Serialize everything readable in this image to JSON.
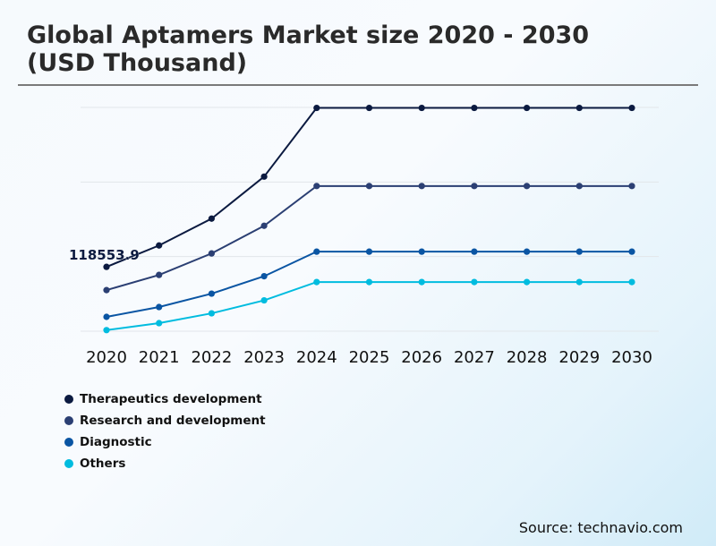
{
  "chart_data": {
    "type": "line",
    "title": "Global Aptamers Market size 2020 - 2030 (USD Thousand)",
    "title_lines": [
      "Global Aptamers Market size 2020 - 2030",
      "(USD Thousand)"
    ],
    "xlabel": "",
    "ylabel": "",
    "x": [
      "2020",
      "2021",
      "2022",
      "2023",
      "2024",
      "2025",
      "2026",
      "2027",
      "2028",
      "2029",
      "2030"
    ],
    "ylim": [
      0,
      412500
    ],
    "grid": true,
    "y_tick_labels_shown": false,
    "legend_position": "bottom-left",
    "annotations": [
      {
        "series": "Therapeutics development",
        "x": "2020",
        "text": "118553.9"
      }
    ],
    "series": [
      {
        "name": "Therapeutics development",
        "color": "#0b1a40",
        "values": [
          118553.9,
          158000,
          207500,
          284900,
          411600,
          411600,
          411600,
          411600,
          411600,
          411600,
          411600
        ]
      },
      {
        "name": "Research and development",
        "color": "#2b3f73",
        "values": [
          75700,
          103700,
          143300,
          194300,
          267600,
          267600,
          267600,
          267600,
          267600,
          267600,
          267600
        ]
      },
      {
        "name": "Diagnostic",
        "color": "#0a55a3",
        "values": [
          26400,
          44500,
          69200,
          101300,
          146600,
          146600,
          146600,
          146600,
          146600,
          146600,
          146600
        ]
      },
      {
        "name": "Others",
        "color": "#00bcdf",
        "values": [
          2000,
          14800,
          32900,
          56800,
          90600,
          90600,
          90600,
          90600,
          90600,
          90600,
          90600
        ]
      }
    ]
  },
  "source": "Source: technavio.com"
}
